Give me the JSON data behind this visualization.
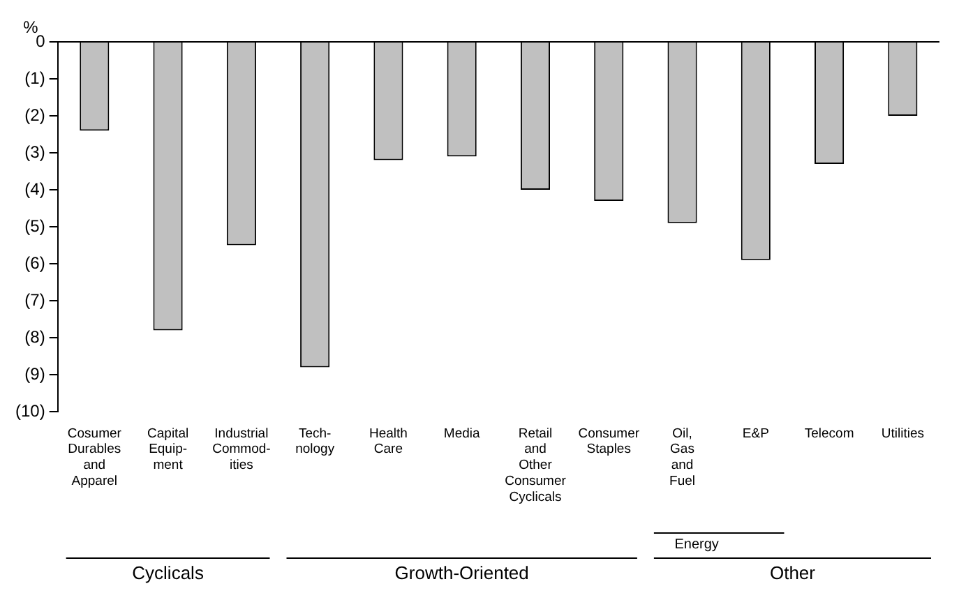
{
  "chart_data": {
    "type": "bar",
    "ylabel": "%",
    "categories": [
      "Cosumer Durables and Apparel",
      "Capital Equip-ment",
      "Industrial Commod-ities",
      "Tech-nology",
      "Health Care",
      "Media",
      "Retail and Other Consumer Cyclicals",
      "Consumer Staples",
      "Oil, Gas and Fuel",
      "E&P",
      "Telecom",
      "Utilities"
    ],
    "values": [
      -2.4,
      -7.8,
      -5.5,
      -8.8,
      -3.2,
      -3.1,
      -4.0,
      -4.3,
      -4.9,
      -5.9,
      -3.3,
      -2.0
    ],
    "color": "#c0c0c0",
    "ylim": [
      -10,
      0
    ],
    "yticks": [
      {
        "value": -10,
        "label": "(10)"
      },
      {
        "value": -9,
        "label": "(9)"
      },
      {
        "value": -8,
        "label": "(8)"
      },
      {
        "value": -7,
        "label": "(7)"
      },
      {
        "value": -6,
        "label": "(6)"
      },
      {
        "value": -5,
        "label": "(5)"
      },
      {
        "value": -4,
        "label": "(4)"
      },
      {
        "value": -3,
        "label": "(3)"
      },
      {
        "value": -2,
        "label": "(2)"
      },
      {
        "value": -1,
        "label": "(1)"
      },
      0
    ],
    "grid": false,
    "legend": false,
    "annotations": [
      "Energy",
      "Cyclicals",
      "Growth-Oriented",
      "Other"
    ]
  }
}
